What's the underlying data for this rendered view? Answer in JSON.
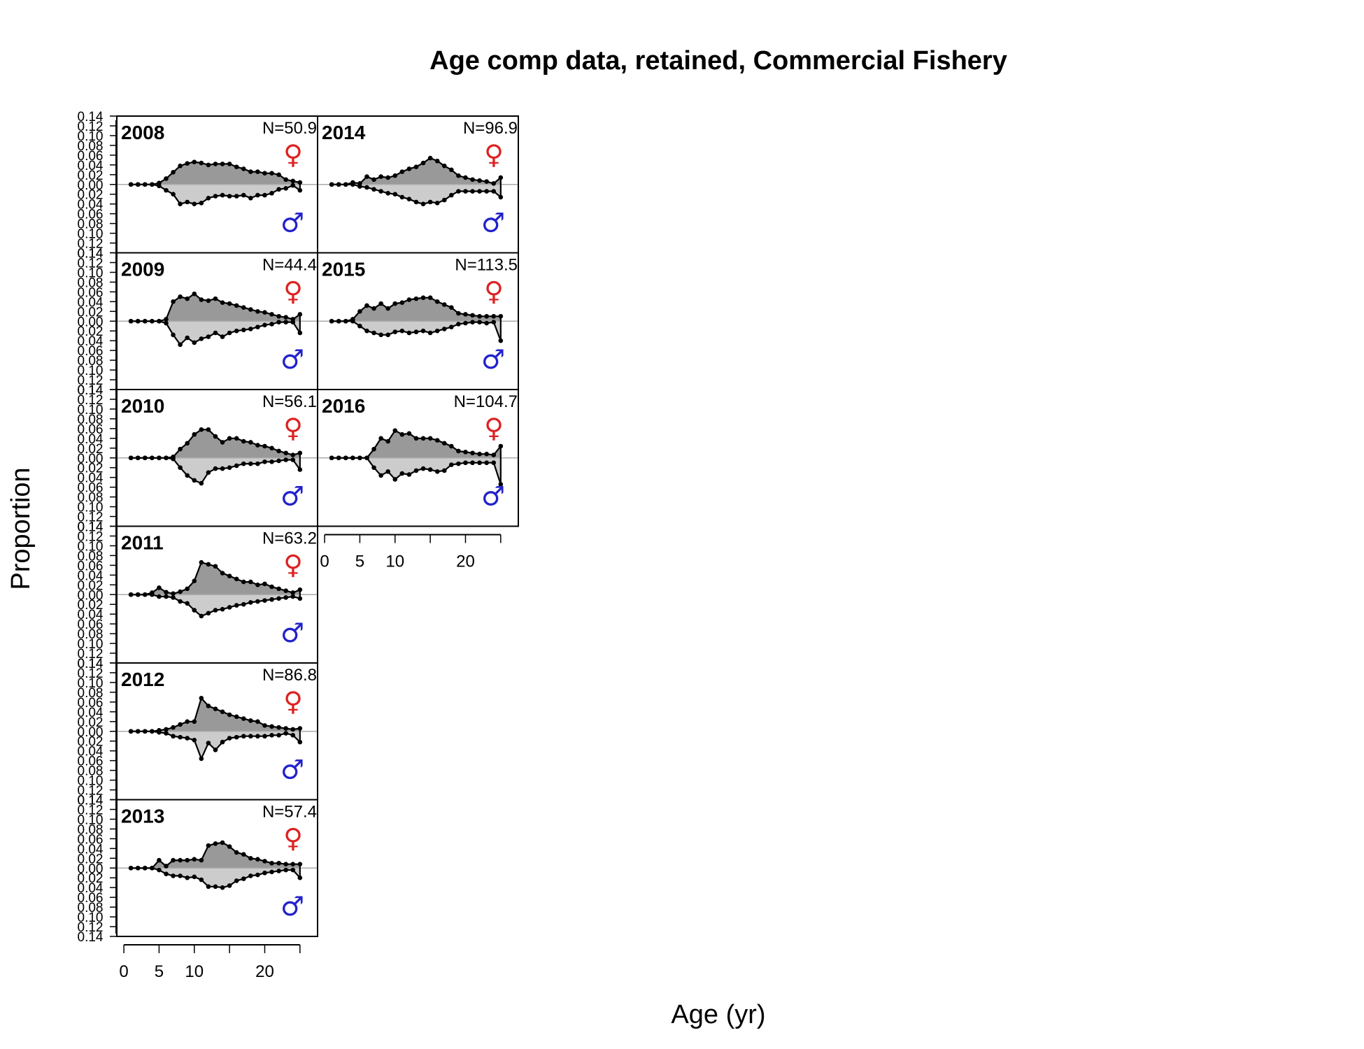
{
  "chart_data": {
    "type": "area",
    "title": "Age comp data, retained, Commercial Fishery",
    "xlabel": "Age (yr)",
    "ylabel": "Proportion",
    "x_ticks": [
      0,
      5,
      10,
      20
    ],
    "y_ticks": [
      "0.14",
      "0.12",
      "0.10",
      "0.08",
      "0.06",
      "0.04",
      "0.02",
      "0.00",
      "0.02",
      "0.04",
      "0.06",
      "0.08",
      "0.10",
      "0.12",
      "0.14"
    ],
    "xlim": [
      -1,
      27.5
    ],
    "ylim": [
      -0.14,
      0.14
    ],
    "female_symbol": "♀",
    "male_symbol": "♂",
    "ages": [
      1,
      2,
      3,
      4,
      5,
      6,
      7,
      8,
      9,
      10,
      11,
      12,
      13,
      14,
      15,
      16,
      17,
      18,
      19,
      20,
      21,
      22,
      23,
      24,
      25
    ],
    "panels": [
      {
        "year": "2008",
        "n_label": "N=50.9",
        "col": 0,
        "row": 0,
        "female": [
          0,
          0,
          0,
          0,
          0.003,
          0.012,
          0.025,
          0.038,
          0.043,
          0.046,
          0.044,
          0.04,
          0.042,
          0.042,
          0.042,
          0.036,
          0.032,
          0.026,
          0.026,
          0.023,
          0.023,
          0.02,
          0.01,
          0.007,
          0.004
        ],
        "male": [
          0,
          0,
          0,
          0,
          0.003,
          0.012,
          0.02,
          0.04,
          0.036,
          0.04,
          0.038,
          0.028,
          0.024,
          0.022,
          0.024,
          0.024,
          0.022,
          0.028,
          0.022,
          0.022,
          0.018,
          0.01,
          0.008,
          0.002,
          0.012
        ]
      },
      {
        "year": "2009",
        "n_label": "N=44.4",
        "col": 0,
        "row": 1,
        "female": [
          0,
          0,
          0,
          0,
          0,
          0.004,
          0.04,
          0.05,
          0.046,
          0.056,
          0.044,
          0.042,
          0.046,
          0.038,
          0.036,
          0.032,
          0.028,
          0.024,
          0.02,
          0.018,
          0.014,
          0.01,
          0.008,
          0.004,
          0.014
        ],
        "male": [
          0,
          0,
          0,
          0,
          0,
          0.004,
          0.028,
          0.048,
          0.034,
          0.044,
          0.036,
          0.032,
          0.024,
          0.032,
          0.024,
          0.02,
          0.018,
          0.016,
          0.012,
          0.008,
          0.006,
          0.002,
          0.002,
          0.002,
          0.024
        ]
      },
      {
        "year": "2010",
        "n_label": "N=56.1",
        "col": 0,
        "row": 2,
        "female": [
          0,
          0,
          0,
          0,
          0,
          0,
          0.002,
          0.018,
          0.03,
          0.048,
          0.058,
          0.058,
          0.044,
          0.032,
          0.04,
          0.04,
          0.034,
          0.032,
          0.026,
          0.024,
          0.02,
          0.014,
          0.01,
          0.006,
          0.01
        ],
        "male": [
          0,
          0,
          0,
          0,
          0,
          0,
          0.002,
          0.02,
          0.036,
          0.046,
          0.052,
          0.03,
          0.022,
          0.022,
          0.02,
          0.016,
          0.012,
          0.012,
          0.012,
          0.008,
          0.008,
          0.006,
          0.004,
          0.004,
          0.024
        ]
      },
      {
        "year": "2011",
        "n_label": "N=63.2",
        "col": 0,
        "row": 3,
        "female": [
          0,
          0,
          0,
          0.004,
          0.014,
          0.005,
          0.002,
          0.006,
          0.012,
          0.028,
          0.066,
          0.062,
          0.058,
          0.044,
          0.038,
          0.032,
          0.026,
          0.026,
          0.02,
          0.022,
          0.016,
          0.012,
          0.008,
          0.004,
          0.01
        ],
        "male": [
          0,
          0,
          0,
          0,
          0.004,
          0.004,
          0.006,
          0.014,
          0.018,
          0.032,
          0.044,
          0.038,
          0.032,
          0.03,
          0.026,
          0.022,
          0.02,
          0.016,
          0.014,
          0.012,
          0.01,
          0.008,
          0.006,
          0.004,
          0.008
        ]
      },
      {
        "year": "2012",
        "n_label": "N=86.8",
        "col": 0,
        "row": 4,
        "female": [
          0,
          0,
          0,
          0,
          0.002,
          0.004,
          0.008,
          0.014,
          0.02,
          0.02,
          0.068,
          0.052,
          0.046,
          0.04,
          0.034,
          0.03,
          0.026,
          0.022,
          0.02,
          0.012,
          0.01,
          0.008,
          0.006,
          0.004,
          0.006
        ],
        "male": [
          0,
          0,
          0,
          0,
          0.002,
          0.004,
          0.01,
          0.012,
          0.014,
          0.018,
          0.056,
          0.024,
          0.038,
          0.022,
          0.014,
          0.012,
          0.01,
          0.01,
          0.01,
          0.01,
          0.008,
          0.008,
          0.004,
          0.008,
          0.022
        ]
      },
      {
        "year": "2013",
        "n_label": "N=57.4",
        "col": 0,
        "row": 5,
        "female": [
          0,
          0,
          0,
          0,
          0.016,
          0.004,
          0.016,
          0.016,
          0.016,
          0.018,
          0.016,
          0.046,
          0.05,
          0.052,
          0.044,
          0.032,
          0.028,
          0.02,
          0.018,
          0.014,
          0.01,
          0.01,
          0.008,
          0.008,
          0.008
        ],
        "male": [
          0,
          0,
          0,
          0,
          0.004,
          0.012,
          0.016,
          0.016,
          0.02,
          0.018,
          0.024,
          0.038,
          0.038,
          0.04,
          0.036,
          0.026,
          0.022,
          0.016,
          0.014,
          0.01,
          0.008,
          0.006,
          0.004,
          0.004,
          0.02
        ]
      },
      {
        "year": "2014",
        "n_label": "N=96.9",
        "col": 1,
        "row": 0,
        "female": [
          0,
          0,
          0,
          0.004,
          0.002,
          0.016,
          0.01,
          0.016,
          0.014,
          0.018,
          0.026,
          0.032,
          0.036,
          0.044,
          0.054,
          0.048,
          0.038,
          0.03,
          0.018,
          0.014,
          0.01,
          0.008,
          0.006,
          0.002,
          0.014
        ],
        "male": [
          0,
          0,
          0,
          0,
          0.004,
          0.006,
          0.01,
          0.014,
          0.018,
          0.02,
          0.026,
          0.03,
          0.036,
          0.04,
          0.036,
          0.038,
          0.032,
          0.022,
          0.014,
          0.014,
          0.014,
          0.014,
          0.014,
          0.014,
          0.026
        ]
      },
      {
        "year": "2015",
        "n_label": "N=113.5",
        "col": 1,
        "row": 1,
        "female": [
          0,
          0,
          0,
          0.004,
          0.02,
          0.032,
          0.026,
          0.036,
          0.026,
          0.036,
          0.038,
          0.044,
          0.046,
          0.048,
          0.048,
          0.04,
          0.034,
          0.028,
          0.016,
          0.014,
          0.012,
          0.01,
          0.01,
          0.01,
          0.01
        ],
        "male": [
          0,
          0,
          0,
          0,
          0.01,
          0.02,
          0.024,
          0.028,
          0.028,
          0.022,
          0.02,
          0.024,
          0.022,
          0.02,
          0.024,
          0.02,
          0.016,
          0.012,
          0.006,
          0.004,
          0.002,
          0.002,
          0.004,
          0.002,
          0.04
        ]
      },
      {
        "year": "2016",
        "n_label": "N=104.7",
        "col": 1,
        "row": 2,
        "female": [
          0,
          0,
          0,
          0,
          0,
          0,
          0.018,
          0.04,
          0.034,
          0.056,
          0.048,
          0.05,
          0.04,
          0.04,
          0.04,
          0.036,
          0.03,
          0.024,
          0.014,
          0.012,
          0.01,
          0.008,
          0.008,
          0.006,
          0.024
        ],
        "male": [
          0,
          0,
          0,
          0,
          0,
          0,
          0.02,
          0.036,
          0.028,
          0.044,
          0.032,
          0.034,
          0.026,
          0.022,
          0.024,
          0.028,
          0.026,
          0.014,
          0.012,
          0.01,
          0.01,
          0.01,
          0.01,
          0.01,
          0.054
        ]
      }
    ],
    "bottom_axes": [
      {
        "col": 0,
        "below_row": 5
      },
      {
        "col": 1,
        "below_row": 2
      }
    ],
    "colors": {
      "female_fill": "#999999",
      "male_fill": "#cccccc",
      "female_symbol": "#dd2222",
      "male_symbol": "#2222cc",
      "zero_line": "#aaaaaa"
    }
  }
}
